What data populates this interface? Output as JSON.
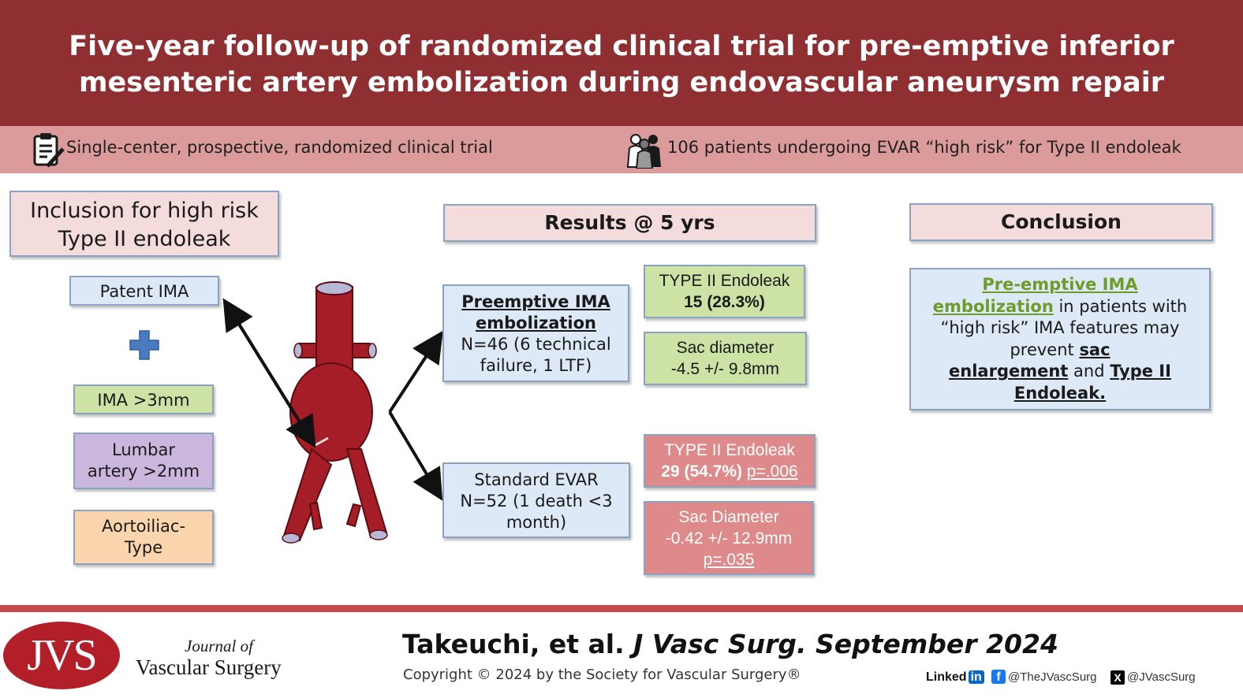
{
  "title_line1": "Five-year follow-up of randomized clinical trial for pre-emptive inferior",
  "title_line2": "mesenteric artery embolization during endovascular aneurysm repair",
  "band": {
    "left_text": "Single-center, prospective, randomized clinical trial",
    "right_text": "106 patients undergoing EVAR “high risk” for Type II endoleak"
  },
  "inclusion": {
    "header_line1": "Inclusion for high risk",
    "header_line2": "Type II endoleak",
    "patent_ima": "Patent IMA",
    "ima_size": "IMA >3mm",
    "lumbar_line1": "Lumbar",
    "lumbar_line2": "artery >2mm",
    "aortoiliac_line1": "Aortoiliac-",
    "aortoiliac_line2": "Type"
  },
  "results": {
    "header": "Results @ 5 yrs",
    "preemptive": {
      "title_line1": "Preemptive IMA",
      "title_line2": "embolization",
      "line1": "N=46 (6 technical",
      "line2": "failure, 1 LTF)"
    },
    "standard": {
      "line1": "Standard EVAR",
      "line2": "N=52 (1 death <3",
      "line3": "month)"
    },
    "pre_endoleak_label": "TYPE II Endoleak",
    "pre_endoleak_value": "15 (28.3%)",
    "pre_sac_label": "Sac diameter",
    "pre_sac_value": "-4.5 +/- 9.8mm",
    "std_endoleak_label": "TYPE II Endoleak",
    "std_endoleak_value": "29 (54.7%)",
    "std_endoleak_p": "p=.006",
    "std_sac_label": "Sac Diameter",
    "std_sac_value": "-0.42 +/- 12.9mm",
    "std_sac_p": "p=.035"
  },
  "conclusion": {
    "header": "Conclusion",
    "g1": "Pre-emptive IMA",
    "g2": "embolization",
    "t1": " in patients with",
    "t2": "“high risk” IMA features may",
    "t3": "prevent ",
    "b1": "sac",
    "b2": "enlargement",
    "t4": " and ",
    "b3": "Type II",
    "b4": "Endoleak."
  },
  "footer": {
    "logo_text": "JVS",
    "journal_line1": "Journal of",
    "journal_line2": "Vascular Surgery",
    "citation_authors": "Takeuchi, et al. ",
    "citation_journal": "J Vasc Surg. September 2024",
    "copyright": "Copyright © 2024 by the Society for Vascular Surgery®",
    "linkedin": "Linked",
    "linkedin_in": "in",
    "facebook_handle": "@TheJVascSurg",
    "x_handle": "@JVascSurg"
  },
  "colors": {
    "header_bg": "#8f2f32",
    "band_bg": "#dc9b9b",
    "aorta": "#a51d26",
    "accent_green": "#6f9b2a"
  }
}
